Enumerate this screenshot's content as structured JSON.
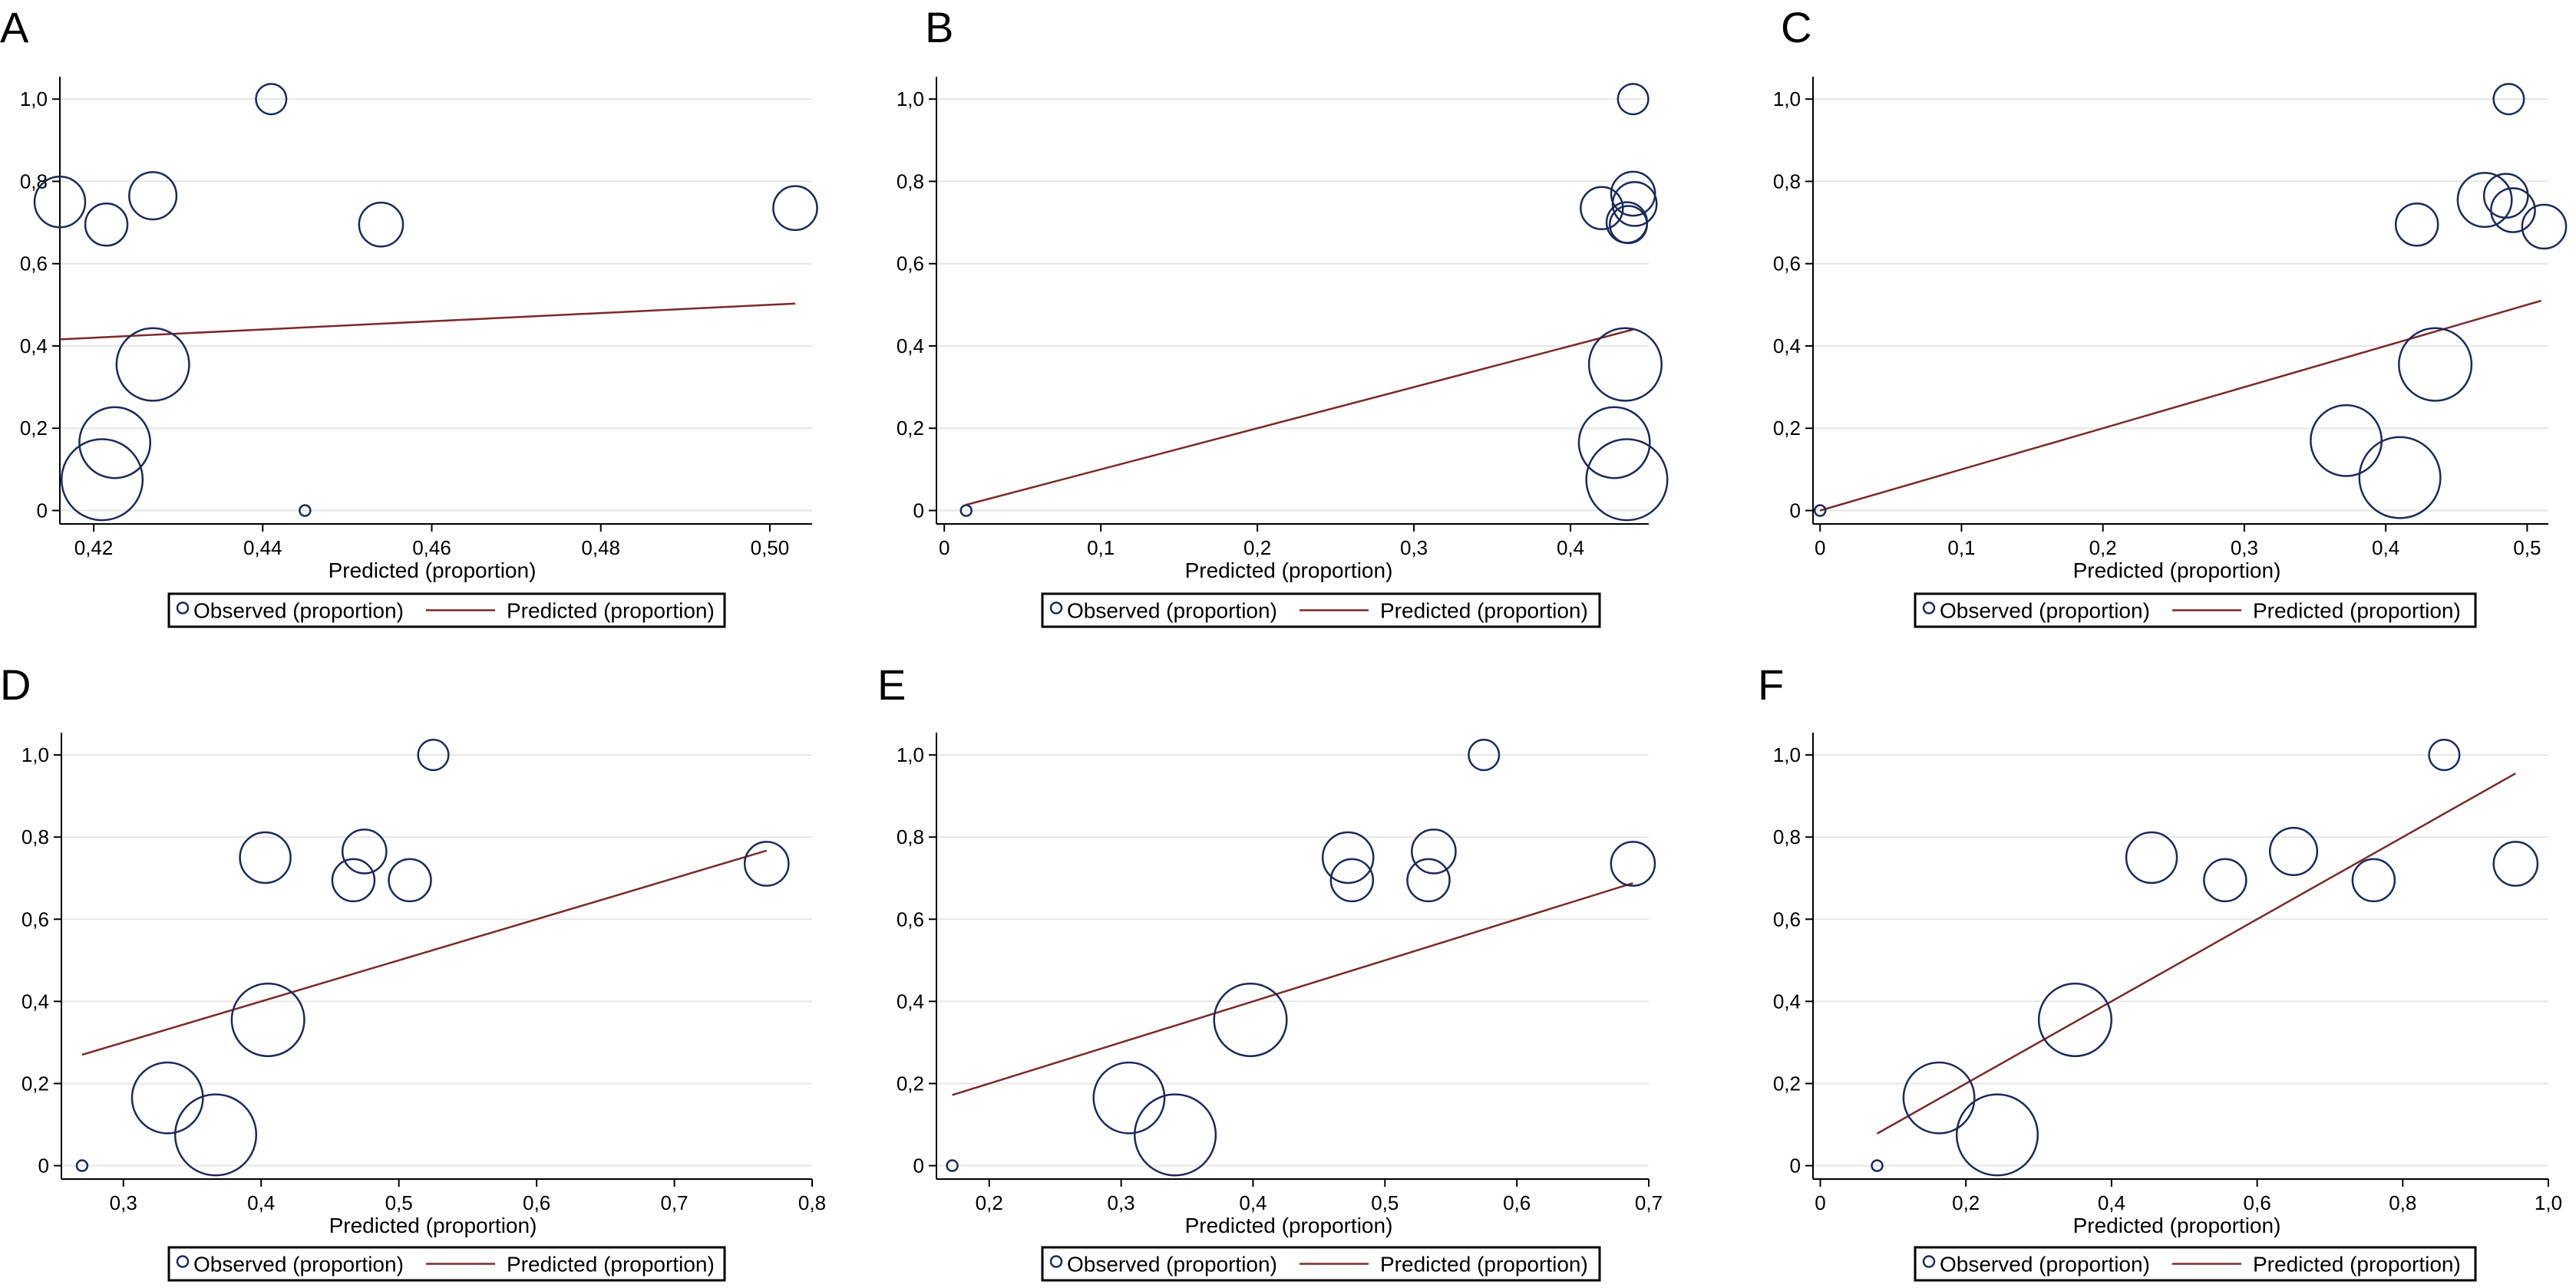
{
  "colors": {
    "observed_marker": "#1c2a5a",
    "predicted_line": "#7a2a2a",
    "grid": "#e6e6e6",
    "axis": "#000000",
    "background": "#ffffff"
  },
  "legend": {
    "observed_label": "Observed (proportion)",
    "predicted_label": "Predicted (proportion)"
  },
  "chart_data": [
    {
      "panel": "A",
      "type": "scatter",
      "xlabel": "Predicted (proportion)",
      "ylabel": "",
      "xlim": [
        0.416,
        0.505
      ],
      "ylim": [
        0,
        1
      ],
      "x_ticks": [
        0.42,
        0.44,
        0.46,
        0.48,
        0.5
      ],
      "x_tick_labels": [
        "0,42",
        "0,44",
        "0,46",
        "0,48",
        "0,50"
      ],
      "y_ticks": [
        0,
        0.2,
        0.4,
        0.6,
        0.8,
        1.0
      ],
      "y_tick_labels": [
        "0",
        "0,2",
        "0,4",
        "0,6",
        "0,8",
        "1,0"
      ],
      "grid": true,
      "legend_position": "bottom",
      "observed": [
        {
          "x": 0.416,
          "y": 0.75,
          "size": 3
        },
        {
          "x": 0.4215,
          "y": 0.695,
          "size": 2.5
        },
        {
          "x": 0.427,
          "y": 0.765,
          "size": 2.8
        },
        {
          "x": 0.441,
          "y": 1.0,
          "size": 1.8
        },
        {
          "x": 0.454,
          "y": 0.695,
          "size": 2.6
        },
        {
          "x": 0.503,
          "y": 0.735,
          "size": 2.6
        },
        {
          "x": 0.427,
          "y": 0.355,
          "size": 4.3
        },
        {
          "x": 0.4225,
          "y": 0.165,
          "size": 4.2
        },
        {
          "x": 0.421,
          "y": 0.075,
          "size": 4.8
        },
        {
          "x": 0.445,
          "y": 0.0,
          "size": 0.6
        }
      ],
      "predicted_line": [
        [
          0.416,
          0.416
        ],
        [
          0.503,
          0.503
        ]
      ]
    },
    {
      "panel": "B",
      "type": "scatter",
      "xlabel": "Predicted (proportion)",
      "ylabel": "",
      "xlim": [
        -0.005,
        0.45
      ],
      "ylim": [
        0,
        1
      ],
      "x_ticks": [
        0,
        0.1,
        0.2,
        0.3,
        0.4
      ],
      "x_tick_labels": [
        "0",
        "0,1",
        "0,2",
        "0,3",
        "0,4"
      ],
      "y_ticks": [
        0,
        0.2,
        0.4,
        0.6,
        0.8,
        1.0
      ],
      "y_tick_labels": [
        "0",
        "0,2",
        "0,4",
        "0,6",
        "0,8",
        "1,0"
      ],
      "grid": true,
      "legend_position": "bottom",
      "observed": [
        {
          "x": 0.014,
          "y": 0.0,
          "size": 0.6
        },
        {
          "x": 0.44,
          "y": 1.0,
          "size": 1.8
        },
        {
          "x": 0.42,
          "y": 0.735,
          "size": 2.5
        },
        {
          "x": 0.44,
          "y": 0.77,
          "size": 2.6
        },
        {
          "x": 0.441,
          "y": 0.745,
          "size": 2.6
        },
        {
          "x": 0.436,
          "y": 0.7,
          "size": 2.4
        },
        {
          "x": 0.437,
          "y": 0.695,
          "size": 2.2
        },
        {
          "x": 0.435,
          "y": 0.355,
          "size": 4.3
        },
        {
          "x": 0.428,
          "y": 0.165,
          "size": 4.2
        },
        {
          "x": 0.436,
          "y": 0.075,
          "size": 4.8
        }
      ],
      "predicted_line": [
        [
          0.014,
          0.014
        ],
        [
          0.44,
          0.44
        ]
      ]
    },
    {
      "panel": "C",
      "type": "scatter",
      "xlabel": "Predicted (proportion)",
      "ylabel": "",
      "xlim": [
        -0.005,
        0.515
      ],
      "ylim": [
        0,
        1
      ],
      "x_ticks": [
        0,
        0.1,
        0.2,
        0.3,
        0.4,
        0.5
      ],
      "x_tick_labels": [
        "0",
        "0,1",
        "0,2",
        "0,3",
        "0,4",
        "0,5"
      ],
      "y_ticks": [
        0,
        0.2,
        0.4,
        0.6,
        0.8,
        1.0
      ],
      "y_tick_labels": [
        "0",
        "0,2",
        "0,4",
        "0,6",
        "0,8",
        "1,0"
      ],
      "grid": true,
      "legend_position": "bottom",
      "observed": [
        {
          "x": 0.0,
          "y": 0.0,
          "size": 0.6
        },
        {
          "x": 0.487,
          "y": 1.0,
          "size": 1.8
        },
        {
          "x": 0.422,
          "y": 0.695,
          "size": 2.5
        },
        {
          "x": 0.47,
          "y": 0.755,
          "size": 3.2
        },
        {
          "x": 0.485,
          "y": 0.765,
          "size": 2.6
        },
        {
          "x": 0.49,
          "y": 0.73,
          "size": 2.6
        },
        {
          "x": 0.512,
          "y": 0.69,
          "size": 2.6
        },
        {
          "x": 0.435,
          "y": 0.355,
          "size": 4.3
        },
        {
          "x": 0.372,
          "y": 0.17,
          "size": 4.2
        },
        {
          "x": 0.41,
          "y": 0.08,
          "size": 4.8
        }
      ],
      "predicted_line": [
        [
          0.0,
          0.0
        ],
        [
          0.51,
          0.51
        ]
      ]
    },
    {
      "panel": "D",
      "type": "scatter",
      "xlabel": "Predicted (proportion)",
      "ylabel": "",
      "xlim": [
        0.255,
        0.8
      ],
      "ylim": [
        0,
        1
      ],
      "x_ticks": [
        0.3,
        0.4,
        0.5,
        0.6,
        0.7,
        0.8
      ],
      "x_tick_labels": [
        "0,3",
        "0,4",
        "0,5",
        "0,6",
        "0,7",
        "0,8"
      ],
      "y_ticks": [
        0,
        0.2,
        0.4,
        0.6,
        0.8,
        1.0
      ],
      "y_tick_labels": [
        "0",
        "0,2",
        "0,4",
        "0,6",
        "0,8",
        "1,0"
      ],
      "grid": true,
      "legend_position": "bottom",
      "observed": [
        {
          "x": 0.27,
          "y": 0.0,
          "size": 0.6
        },
        {
          "x": 0.525,
          "y": 1.0,
          "size": 1.8
        },
        {
          "x": 0.403,
          "y": 0.75,
          "size": 3.0
        },
        {
          "x": 0.475,
          "y": 0.765,
          "size": 2.6
        },
        {
          "x": 0.467,
          "y": 0.695,
          "size": 2.5
        },
        {
          "x": 0.508,
          "y": 0.695,
          "size": 2.5
        },
        {
          "x": 0.767,
          "y": 0.735,
          "size": 2.6
        },
        {
          "x": 0.405,
          "y": 0.355,
          "size": 4.3
        },
        {
          "x": 0.332,
          "y": 0.165,
          "size": 4.2
        },
        {
          "x": 0.367,
          "y": 0.075,
          "size": 4.8
        }
      ],
      "predicted_line": [
        [
          0.27,
          0.27
        ],
        [
          0.767,
          0.767
        ]
      ]
    },
    {
      "panel": "E",
      "type": "scatter",
      "xlabel": "Predicted (proportion)",
      "ylabel": "",
      "xlim": [
        0.16,
        0.7
      ],
      "ylim": [
        0,
        1
      ],
      "x_ticks": [
        0.2,
        0.3,
        0.4,
        0.5,
        0.6,
        0.7
      ],
      "x_tick_labels": [
        "0,2",
        "0,3",
        "0,4",
        "0,5",
        "0,6",
        "0,7"
      ],
      "y_ticks": [
        0,
        0.2,
        0.4,
        0.6,
        0.8,
        1.0
      ],
      "y_tick_labels": [
        "0",
        "0,2",
        "0,4",
        "0,6",
        "0,8",
        "1,0"
      ],
      "grid": true,
      "legend_position": "bottom",
      "observed": [
        {
          "x": 0.172,
          "y": 0.0,
          "size": 0.6
        },
        {
          "x": 0.575,
          "y": 1.0,
          "size": 1.8
        },
        {
          "x": 0.472,
          "y": 0.75,
          "size": 3.0
        },
        {
          "x": 0.537,
          "y": 0.765,
          "size": 2.6
        },
        {
          "x": 0.475,
          "y": 0.695,
          "size": 2.5
        },
        {
          "x": 0.533,
          "y": 0.695,
          "size": 2.5
        },
        {
          "x": 0.688,
          "y": 0.735,
          "size": 2.6
        },
        {
          "x": 0.398,
          "y": 0.355,
          "size": 4.3
        },
        {
          "x": 0.306,
          "y": 0.165,
          "size": 4.2
        },
        {
          "x": 0.341,
          "y": 0.075,
          "size": 4.8
        }
      ],
      "predicted_line": [
        [
          0.172,
          0.172
        ],
        [
          0.688,
          0.688
        ]
      ]
    },
    {
      "panel": "F",
      "type": "scatter",
      "xlabel": "Predicted (proportion)",
      "ylabel": "",
      "xlim": [
        -0.01,
        1.0
      ],
      "ylim": [
        0,
        1
      ],
      "x_ticks": [
        0,
        0.2,
        0.4,
        0.6,
        0.8,
        1.0
      ],
      "x_tick_labels": [
        "0",
        "0,2",
        "0,4",
        "0,6",
        "0,8",
        "1,0"
      ],
      "y_ticks": [
        0,
        0.2,
        0.4,
        0.6,
        0.8,
        1.0
      ],
      "y_tick_labels": [
        "0",
        "0,2",
        "0,4",
        "0,6",
        "0,8",
        "1,0"
      ],
      "grid": true,
      "legend_position": "bottom",
      "observed": [
        {
          "x": 0.078,
          "y": 0.0,
          "size": 0.6
        },
        {
          "x": 0.857,
          "y": 1.0,
          "size": 1.8
        },
        {
          "x": 0.455,
          "y": 0.75,
          "size": 3.0
        },
        {
          "x": 0.556,
          "y": 0.695,
          "size": 2.5
        },
        {
          "x": 0.65,
          "y": 0.765,
          "size": 2.8
        },
        {
          "x": 0.76,
          "y": 0.695,
          "size": 2.5
        },
        {
          "x": 0.955,
          "y": 0.735,
          "size": 2.6
        },
        {
          "x": 0.35,
          "y": 0.355,
          "size": 4.3
        },
        {
          "x": 0.163,
          "y": 0.165,
          "size": 4.2
        },
        {
          "x": 0.243,
          "y": 0.075,
          "size": 4.8
        }
      ],
      "predicted_line": [
        [
          0.078,
          0.078
        ],
        [
          0.955,
          0.955
        ]
      ]
    }
  ]
}
